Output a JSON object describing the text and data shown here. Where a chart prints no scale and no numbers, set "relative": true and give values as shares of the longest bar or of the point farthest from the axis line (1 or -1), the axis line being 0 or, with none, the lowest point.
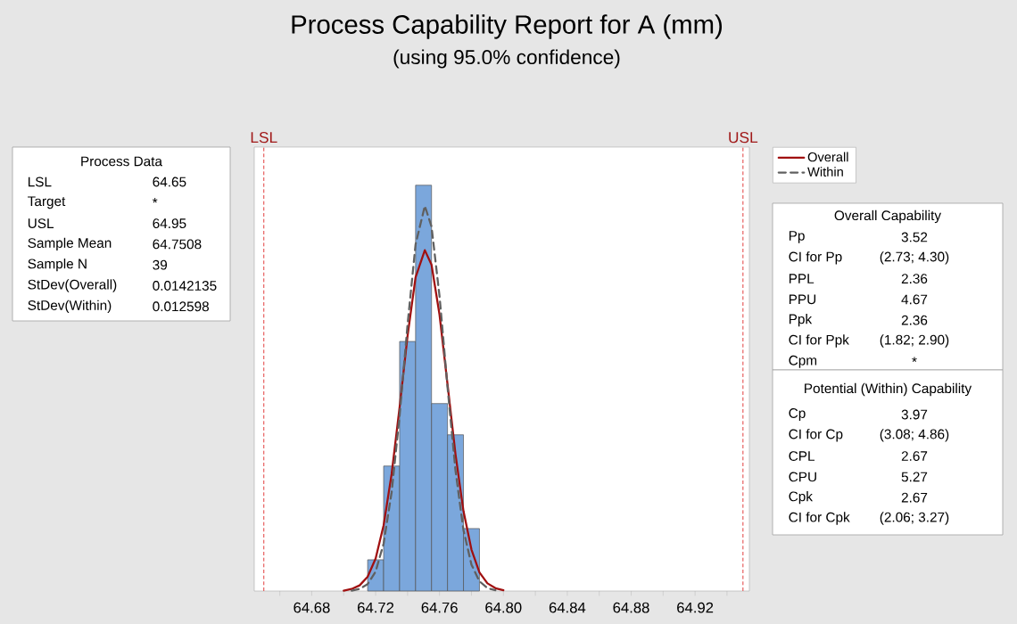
{
  "chart_data": [
    {
      "type": "histogram",
      "title": "Process Capability Report for A (mm)",
      "subtitle": "(using 95.0% confidence)",
      "relative": true,
      "legend": "top right",
      "series": [
        {
          "type": "histogram",
          "color": "#7ba7dc",
          "bins": [
            64.715,
            64.725,
            64.735,
            64.745,
            64.755,
            64.765,
            64.775,
            64.785
          ],
          "values": [
            0.077,
            0.308,
            0.615,
            1,
            0.462,
            0.385,
            0.154
          ]
        },
        {
          "type": "line",
          "name": "Overall",
          "color": "#a01010",
          "line_style": "solid",
          "x": [
            64.7,
            64.705,
            64.71,
            64.715,
            64.72,
            64.725,
            64.73,
            64.735,
            64.74,
            64.745,
            64.7508,
            64.755,
            64.76,
            64.765,
            64.77,
            64.775,
            64.78,
            64.785,
            64.79,
            64.795,
            64.8
          ],
          "values": [
            0.001,
            0.005,
            0.014,
            0.035,
            0.08,
            0.162,
            0.288,
            0.453,
            0.629,
            0.773,
            0.84,
            0.804,
            0.681,
            0.51,
            0.337,
            0.197,
            0.102,
            0.046,
            0.019,
            0.007,
            0.002
          ]
        },
        {
          "type": "line",
          "name": "Within",
          "color": "#606060",
          "line_style": "dashed",
          "x": [
            64.705,
            64.71,
            64.715,
            64.72,
            64.725,
            64.73,
            64.735,
            64.74,
            64.745,
            64.7508,
            64.755,
            64.76,
            64.765,
            64.77,
            64.775,
            64.78,
            64.785,
            64.79,
            64.795
          ],
          "values": [
            0.001,
            0.005,
            0.017,
            0.048,
            0.117,
            0.243,
            0.432,
            0.657,
            0.854,
            0.949,
            0.898,
            0.727,
            0.503,
            0.297,
            0.15,
            0.065,
            0.024,
            0.007,
            0.002
          ]
        }
      ],
      "xlim": [
        64.644,
        64.954
      ],
      "xticks": [
        {
          "value": 64.66,
          "label": null
        },
        64.68,
        {
          "value": 64.7,
          "label": null
        },
        64.72,
        {
          "value": 64.74,
          "label": null
        },
        64.76,
        {
          "value": 64.78,
          "label": null
        },
        {
          "value": 64.8,
          "label": "64.80"
        },
        {
          "value": 64.82,
          "label": null
        },
        64.84,
        {
          "value": 64.86,
          "label": null
        },
        64.88,
        {
          "value": 64.9,
          "label": null
        },
        64.92,
        {
          "value": 64.94,
          "label": null
        }
      ],
      "ref_lines": [
        {
          "axis": "x",
          "value": 64.65,
          "label": "LSL",
          "color": "#e03030",
          "line_style": "dashed"
        },
        {
          "axis": "x",
          "value": 64.95,
          "label": "USL",
          "color": "#e03030",
          "line_style": "dashed"
        }
      ]
    },
    {
      "type": "other",
      "title": "Process Data",
      "annotations": [
        "LSL",
        "64.65",
        "Target",
        "*",
        "USL",
        "64.95",
        "Sample Mean",
        "64.7508",
        "Sample N",
        "39",
        "StDev(Overall)",
        "0.0142135",
        "StDev(Within)",
        "0.012598"
      ]
    },
    {
      "type": "other",
      "title": "Overall Capability",
      "annotations": [
        "Pp",
        "3.52",
        "CI for Pp",
        "(2.73; 4.30)",
        "PPL",
        "2.36",
        "PPU",
        "4.67",
        "Ppk",
        "2.36",
        "CI for Ppk",
        "(1.82; 2.90)",
        "Cpm",
        "*"
      ]
    },
    {
      "type": "other",
      "title": "Potential (Within) Capability",
      "annotations": [
        "Cp",
        "3.97",
        "CI for Cp",
        "(3.08; 4.86)",
        "CPL",
        "2.67",
        "CPU",
        "5.27",
        "Cpk",
        "2.67",
        "CI for Cpk",
        "(2.06; 3.27)"
      ]
    }
  ]
}
